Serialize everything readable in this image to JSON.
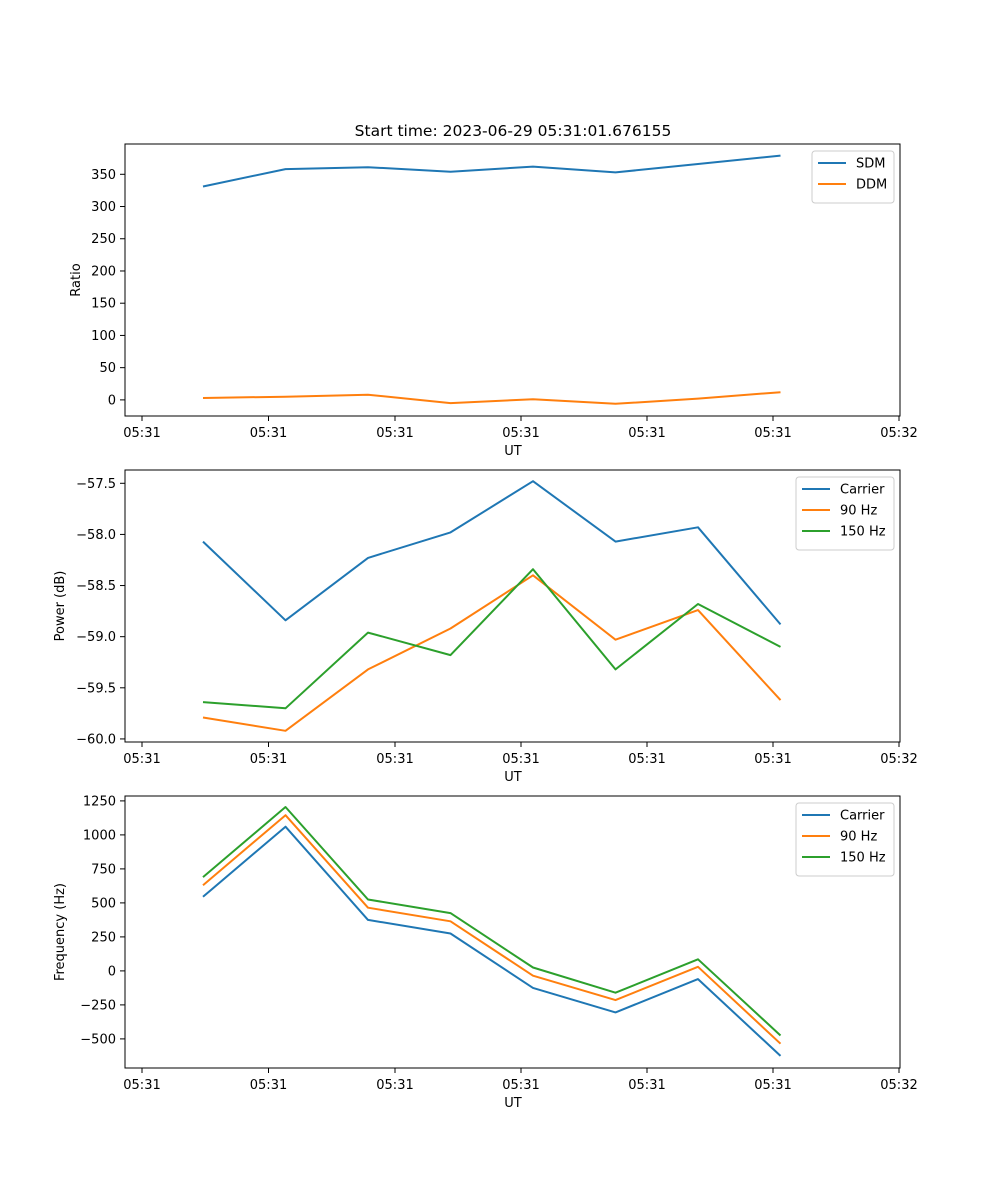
{
  "figure": {
    "title": "Start time: 2023-06-29 05:31:01.676155"
  },
  "chart_data": [
    {
      "type": "line",
      "title": "Start time: 2023-06-29 05:31:01.676155",
      "xlabel": "UT",
      "ylabel": "Ratio",
      "x_tick_labels": [
        "05:31",
        "05:31",
        "05:31",
        "05:31",
        "05:31",
        "05:31",
        "05:32"
      ],
      "y_ticks": [
        0,
        50,
        100,
        150,
        200,
        250,
        300,
        350
      ],
      "ylim": [
        -25,
        397
      ],
      "legend_position": "top-right",
      "grid": false,
      "series": [
        {
          "name": "SDM",
          "color": "#1f77b4",
          "values": [
            331,
            358,
            361,
            354,
            362,
            353,
            366,
            379
          ]
        },
        {
          "name": "DDM",
          "color": "#ff7f0e",
          "values": [
            3,
            5,
            8,
            -5,
            1,
            -6,
            2,
            12
          ]
        }
      ]
    },
    {
      "type": "line",
      "title": "",
      "xlabel": "UT",
      "ylabel": "Power (dB)",
      "x_tick_labels": [
        "05:31",
        "05:31",
        "05:31",
        "05:31",
        "05:31",
        "05:31",
        "05:32"
      ],
      "y_ticks": [
        -60.0,
        -59.5,
        -59.0,
        -58.5,
        -58.0,
        -57.5
      ],
      "y_tick_labels": [
        "−60.0",
        "−59.5",
        "−59.0",
        "−58.5",
        "−58.0",
        "−57.5"
      ],
      "ylim": [
        -60.03,
        -57.37
      ],
      "legend_position": "top-right",
      "grid": false,
      "series": [
        {
          "name": "Carrier",
          "color": "#1f77b4",
          "values": [
            -58.07,
            -58.84,
            -58.23,
            -57.98,
            -57.48,
            -58.07,
            -57.93,
            -58.88
          ]
        },
        {
          "name": "90 Hz",
          "color": "#ff7f0e",
          "values": [
            -59.79,
            -59.92,
            -59.32,
            -58.92,
            -58.4,
            -59.03,
            -58.74,
            -59.62
          ]
        },
        {
          "name": "150 Hz",
          "color": "#2ca02c",
          "values": [
            -59.64,
            -59.7,
            -58.96,
            -59.18,
            -58.34,
            -59.32,
            -58.68,
            -59.1
          ]
        }
      ]
    },
    {
      "type": "line",
      "title": "",
      "xlabel": "UT",
      "ylabel": "Frequency (Hz)",
      "x_tick_labels": [
        "05:31",
        "05:31",
        "05:31",
        "05:31",
        "05:31",
        "05:31",
        "05:32"
      ],
      "y_ticks": [
        -500,
        -250,
        0,
        250,
        500,
        750,
        1000,
        1250
      ],
      "y_tick_labels": [
        "−500",
        "−250",
        "0",
        "250",
        "500",
        "750",
        "1000",
        "1250"
      ],
      "ylim": [
        -714,
        1286
      ],
      "legend_position": "top-right",
      "grid": false,
      "series": [
        {
          "name": "Carrier",
          "color": "#1f77b4",
          "values": [
            545,
            1060,
            375,
            275,
            -125,
            -305,
            -60,
            -625
          ]
        },
        {
          "name": "90 Hz",
          "color": "#ff7f0e",
          "values": [
            630,
            1145,
            465,
            365,
            -35,
            -215,
            30,
            -535
          ]
        },
        {
          "name": "150 Hz",
          "color": "#2ca02c",
          "values": [
            690,
            1205,
            525,
            425,
            25,
            -160,
            85,
            -475
          ]
        }
      ]
    }
  ]
}
